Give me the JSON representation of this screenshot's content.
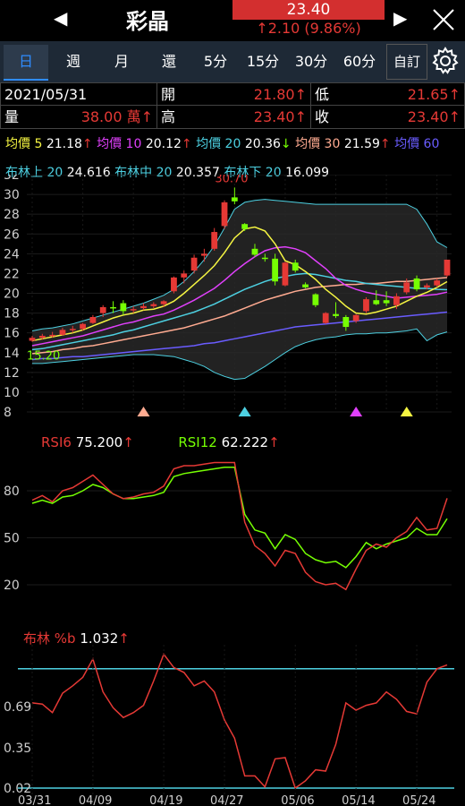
{
  "header": {
    "stock_name": "彩晶",
    "price": "23.40",
    "change": "↑2.10 (9.86%)",
    "prev_icon": "left-triangle",
    "next_icon": "right-triangle",
    "close_icon": "close-x"
  },
  "tabs": [
    {
      "label": "日",
      "active": true
    },
    {
      "label": "週"
    },
    {
      "label": "月"
    },
    {
      "label": "還"
    },
    {
      "label": "5分"
    },
    {
      "label": "15分"
    },
    {
      "label": "30分"
    },
    {
      "label": "60分"
    }
  ],
  "custom_tab": "自訂",
  "settings_icon": "gear",
  "info": {
    "date": "2021/05/31",
    "open_label": "開",
    "open_value": "21.80↑",
    "low_label": "低",
    "low_value": "21.65↑",
    "volume_label": "量",
    "volume_value": "38.00 萬↑",
    "high_label": "高",
    "high_value": "23.40↑",
    "close_label": "收",
    "close_value": "23.40↑"
  },
  "ma_legend": [
    {
      "label": "均價 5",
      "value": "21.18",
      "arrow": "↑",
      "color": "#f5f542"
    },
    {
      "label": "均價 10",
      "value": "20.12",
      "arrow": "↑",
      "color": "#e040fb"
    },
    {
      "label": "均價 20",
      "value": "20.36",
      "arrow": "↓",
      "color": "#4dd0e1"
    },
    {
      "label": "均價 30",
      "value": "21.59",
      "arrow": "↑",
      "color": "#ffab91"
    },
    {
      "label": "均價 60",
      "value": "",
      "arrow": "",
      "color": "#6a5cff"
    }
  ],
  "boll_legend": [
    {
      "label": "布林上 20",
      "value": "24.616"
    },
    {
      "label": "布林中 20",
      "value": "20.357"
    },
    {
      "label": "布林下 20",
      "value": "16.099"
    }
  ],
  "price_axis": [
    "32",
    "30",
    "28",
    "26",
    "24",
    "22",
    "20",
    "18",
    "16",
    "14",
    "12",
    "10",
    "8"
  ],
  "max_label": "30.70",
  "min_label": "15.20",
  "rsi_legend": [
    {
      "label": "RSI6",
      "value": "75.200",
      "arrow": "↑",
      "color": "#e53935"
    },
    {
      "label": "RSI12",
      "value": "62.222",
      "arrow": "↑",
      "color": "#76ff03"
    }
  ],
  "rsi_axis": [
    "80",
    "50",
    "20"
  ],
  "percentb_legend": {
    "label": "布林 %b",
    "value": "1.032",
    "arrow": "↑"
  },
  "percentb_axis": [
    "0.69",
    "0.35",
    "0.02"
  ],
  "x_dates": [
    "03/31",
    "04/09",
    "04/19",
    "04/27",
    "05/06",
    "05/14",
    "05/24"
  ],
  "chart_data": {
    "type": "candlestick",
    "candles": [
      {
        "o": 15.2,
        "h": 15.7,
        "l": 15.1,
        "c": 15.5
      },
      {
        "o": 15.5,
        "h": 15.9,
        "l": 15.3,
        "c": 15.7
      },
      {
        "o": 15.7,
        "h": 16.1,
        "l": 15.5,
        "c": 15.8
      },
      {
        "o": 15.8,
        "h": 16.5,
        "l": 15.7,
        "c": 16.3
      },
      {
        "o": 16.3,
        "h": 16.7,
        "l": 16.0,
        "c": 16.4
      },
      {
        "o": 16.4,
        "h": 17.0,
        "l": 16.2,
        "c": 16.9
      },
      {
        "o": 17.0,
        "h": 17.8,
        "l": 16.9,
        "c": 17.6
      },
      {
        "o": 18.0,
        "h": 18.8,
        "l": 17.6,
        "c": 18.6
      },
      {
        "o": 18.6,
        "h": 19.2,
        "l": 18.0,
        "c": 18.5
      },
      {
        "o": 19.0,
        "h": 19.3,
        "l": 17.8,
        "c": 18.2
      },
      {
        "o": 18.3,
        "h": 18.7,
        "l": 18.0,
        "c": 18.4
      },
      {
        "o": 18.5,
        "h": 19.0,
        "l": 18.3,
        "c": 18.7
      },
      {
        "o": 18.7,
        "h": 19.1,
        "l": 18.5,
        "c": 18.9
      },
      {
        "o": 18.9,
        "h": 19.3,
        "l": 18.6,
        "c": 19.2
      },
      {
        "o": 20.2,
        "h": 21.7,
        "l": 20.0,
        "c": 21.6
      },
      {
        "o": 21.6,
        "h": 22.3,
        "l": 21.0,
        "c": 22.0
      },
      {
        "o": 22.3,
        "h": 23.9,
        "l": 22.0,
        "c": 23.6
      },
      {
        "o": 23.8,
        "h": 24.5,
        "l": 23.2,
        "c": 24.0
      },
      {
        "o": 24.5,
        "h": 26.6,
        "l": 24.3,
        "c": 26.2
      },
      {
        "o": 26.8,
        "h": 29.4,
        "l": 26.5,
        "c": 29.2
      },
      {
        "o": 29.7,
        "h": 30.7,
        "l": 29.0,
        "c": 29.3
      },
      {
        "o": 27.0,
        "h": 27.1,
        "l": 26.3,
        "c": 26.5
      },
      {
        "o": 24.5,
        "h": 25.0,
        "l": 23.7,
        "c": 23.9
      },
      {
        "o": 23.6,
        "h": 24.0,
        "l": 23.2,
        "c": 23.5
      },
      {
        "o": 23.5,
        "h": 24.0,
        "l": 20.8,
        "c": 21.2
      },
      {
        "o": 20.8,
        "h": 23.2,
        "l": 20.7,
        "c": 23.1
      },
      {
        "o": 23.1,
        "h": 23.4,
        "l": 22.1,
        "c": 22.3
      },
      {
        "o": 20.9,
        "h": 21.1,
        "l": 20.5,
        "c": 20.6
      },
      {
        "o": 19.9,
        "h": 20.0,
        "l": 18.6,
        "c": 18.8
      },
      {
        "o": 17.0,
        "h": 18.1,
        "l": 16.9,
        "c": 18.0
      },
      {
        "o": 17.9,
        "h": 19.1,
        "l": 17.5,
        "c": 17.7
      },
      {
        "o": 17.6,
        "h": 17.8,
        "l": 16.2,
        "c": 16.6
      },
      {
        "o": 17.2,
        "h": 17.9,
        "l": 17.0,
        "c": 17.8
      },
      {
        "o": 18.2,
        "h": 19.6,
        "l": 18.0,
        "c": 19.4
      },
      {
        "o": 19.3,
        "h": 20.3,
        "l": 18.8,
        "c": 18.9
      },
      {
        "o": 19.3,
        "h": 20.2,
        "l": 18.7,
        "c": 19.0
      },
      {
        "o": 18.8,
        "h": 20.0,
        "l": 18.4,
        "c": 19.7
      },
      {
        "o": 20.1,
        "h": 21.5,
        "l": 19.9,
        "c": 21.1
      },
      {
        "o": 21.5,
        "h": 21.8,
        "l": 20.2,
        "c": 20.4
      },
      {
        "o": 20.6,
        "h": 21.0,
        "l": 20.4,
        "c": 20.8
      },
      {
        "o": 20.8,
        "h": 21.5,
        "l": 20.6,
        "c": 21.3
      },
      {
        "o": 21.8,
        "h": 23.4,
        "l": 21.65,
        "c": 23.4
      }
    ],
    "ma5": [
      15.2,
      15.4,
      15.6,
      15.8,
      16.0,
      16.3,
      16.7,
      17.1,
      17.5,
      17.8,
      18.0,
      18.3,
      18.4,
      18.7,
      19.2,
      20.0,
      20.9,
      21.8,
      22.8,
      24.1,
      25.6,
      26.5,
      26.7,
      26.3,
      25.0,
      23.3,
      22.9,
      22.2,
      21.4,
      20.4,
      19.6,
      18.7,
      18.0,
      17.9,
      18.1,
      18.4,
      18.7,
      19.2,
      19.7,
      20.1,
      20.6,
      21.18
    ],
    "ma10": [
      14.7,
      14.9,
      15.1,
      15.3,
      15.5,
      15.7,
      16.0,
      16.3,
      16.6,
      16.9,
      17.1,
      17.4,
      17.7,
      17.9,
      18.3,
      18.8,
      19.3,
      19.9,
      20.5,
      21.3,
      22.2,
      23.0,
      23.7,
      24.3,
      24.6,
      24.7,
      24.5,
      24.1,
      23.3,
      22.5,
      21.5,
      20.8,
      20.4,
      20.1,
      19.9,
      19.7,
      19.5,
      19.6,
      19.7,
      19.8,
      19.9,
      20.12
    ],
    "ma20": [
      14.3,
      14.4,
      14.6,
      14.8,
      15.0,
      15.2,
      15.4,
      15.6,
      15.8,
      16.1,
      16.3,
      16.6,
      16.9,
      17.2,
      17.5,
      17.8,
      18.1,
      18.5,
      18.9,
      19.4,
      19.9,
      20.4,
      20.8,
      21.2,
      21.5,
      21.7,
      21.9,
      22.0,
      21.9,
      21.7,
      21.5,
      21.3,
      21.2,
      21.0,
      20.9,
      20.8,
      20.7,
      20.6,
      20.5,
      20.5,
      20.4,
      20.36
    ],
    "ma30": [
      13.9,
      14.0,
      14.1,
      14.3,
      14.4,
      14.6,
      14.7,
      14.9,
      15.1,
      15.3,
      15.5,
      15.7,
      15.9,
      16.1,
      16.3,
      16.5,
      16.8,
      17.1,
      17.4,
      17.7,
      18.1,
      18.5,
      18.9,
      19.3,
      19.6,
      19.9,
      20.2,
      20.4,
      20.6,
      20.7,
      20.8,
      20.9,
      20.9,
      21.0,
      21.0,
      21.1,
      21.2,
      21.2,
      21.3,
      21.4,
      21.5,
      21.59
    ],
    "ma60": [
      13.3,
      13.4,
      13.4,
      13.5,
      13.6,
      13.6,
      13.7,
      13.8,
      13.9,
      14.0,
      14.1,
      14.2,
      14.3,
      14.4,
      14.5,
      14.6,
      14.7,
      14.9,
      15.0,
      15.2,
      15.4,
      15.6,
      15.8,
      16.0,
      16.2,
      16.4,
      16.6,
      16.7,
      16.8,
      16.9,
      17.0,
      17.1,
      17.2,
      17.3,
      17.4,
      17.5,
      17.6,
      17.7,
      17.8,
      17.9,
      18.0,
      18.1
    ],
    "boll_upper": [
      16.2,
      16.4,
      16.5,
      16.7,
      16.9,
      17.2,
      17.5,
      17.8,
      18.1,
      18.4,
      18.7,
      19.0,
      19.4,
      19.8,
      20.4,
      21.2,
      22.2,
      23.4,
      24.8,
      26.6,
      28.5,
      29.2,
      29.4,
      29.5,
      29.4,
      29.3,
      29.2,
      29.1,
      29.0,
      29.0,
      29.0,
      29.0,
      29.0,
      29.0,
      29.0,
      29.0,
      29.0,
      29.0,
      28.5,
      27.0,
      25.2,
      24.616
    ],
    "boll_mid": [
      14.5,
      14.6,
      14.8,
      15.0,
      15.2,
      15.4,
      15.6,
      15.8,
      16.0,
      16.3,
      16.5,
      16.8,
      17.1,
      17.4,
      17.7,
      18.0,
      18.4,
      18.8,
      19.2,
      19.7,
      20.2,
      20.6,
      21.0,
      21.3,
      21.6,
      21.8,
      22.0,
      22.0,
      21.9,
      21.7,
      21.5,
      21.3,
      21.2,
      21.0,
      20.9,
      20.8,
      20.7,
      20.6,
      20.5,
      20.5,
      20.4,
      20.357
    ],
    "boll_lower": [
      12.9,
      12.9,
      13.0,
      13.1,
      13.2,
      13.3,
      13.4,
      13.5,
      13.6,
      13.7,
      13.8,
      13.8,
      13.8,
      13.7,
      13.6,
      13.3,
      13.0,
      12.6,
      12.0,
      11.6,
      11.3,
      11.4,
      12.0,
      12.6,
      13.3,
      14.0,
      14.6,
      15.0,
      15.3,
      15.5,
      15.6,
      15.8,
      15.9,
      15.9,
      16.0,
      16.0,
      16.1,
      16.2,
      16.4,
      15.2,
      15.8,
      16.099
    ],
    "rsi6": [
      74,
      77,
      73,
      80,
      82,
      86,
      90,
      84,
      78,
      75,
      76,
      78,
      79,
      83,
      94,
      96,
      96,
      97,
      98,
      98,
      98,
      60,
      45,
      40,
      32,
      42,
      40,
      28,
      22,
      20,
      21,
      17,
      30,
      42,
      46,
      44,
      50,
      54,
      63,
      55,
      56,
      75.2
    ],
    "rsi12": [
      72,
      74,
      72,
      76,
      77,
      80,
      84,
      82,
      78,
      75,
      75,
      76,
      77,
      79,
      89,
      91,
      92,
      93,
      94,
      95,
      95,
      65,
      55,
      53,
      43,
      52,
      49,
      40,
      36,
      34,
      35,
      31,
      38,
      47,
      43,
      46,
      48,
      50,
      56,
      52,
      52,
      62.222
    ],
    "percent_b": [
      0.72,
      0.71,
      0.64,
      0.8,
      0.86,
      0.93,
      1.08,
      0.81,
      0.68,
      0.6,
      0.64,
      0.7,
      0.9,
      1.12,
      1.01,
      0.97,
      0.86,
      0.9,
      0.81,
      0.58,
      0.43,
      0.12,
      0.12,
      0.03,
      0.26,
      0.27,
      0.02,
      0.08,
      0.17,
      0.16,
      0.38,
      0.72,
      0.66,
      0.7,
      0.72,
      0.81,
      0.75,
      0.65,
      0.63,
      0.89,
      1.0,
      1.032
    ],
    "ylim_price": [
      8,
      32
    ],
    "ylim_rsi": [
      0,
      100
    ],
    "ylim_percent_b": [
      0.02,
      1.05
    ]
  }
}
